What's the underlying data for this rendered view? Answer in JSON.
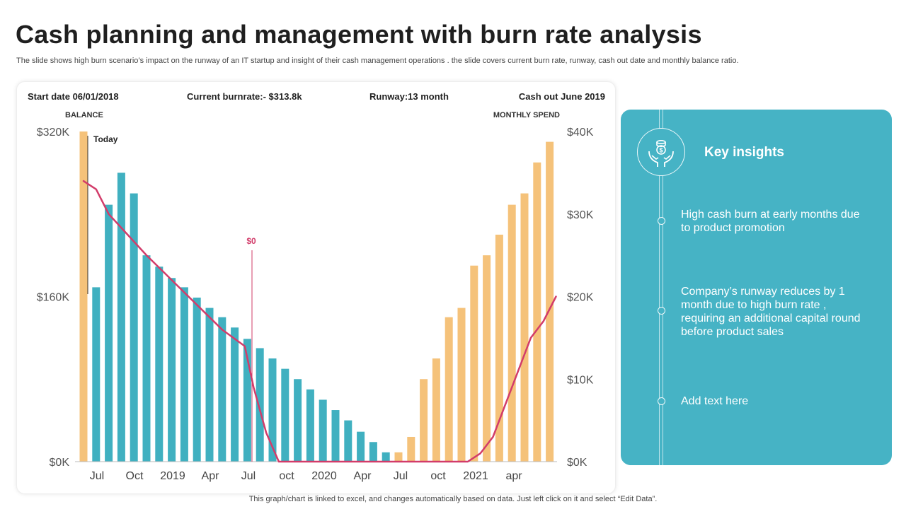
{
  "page": {
    "title": "Cash planning and management with burn rate analysis",
    "subtitle": "The slide shows high burn scenario’s impact on the runway of an IT startup and insight of their cash management operations . the slide covers current burn rate, runway, cash out date and monthly balance ratio.",
    "footer": "This graph/chart is linked to excel, and changes automatically based on data. Just left click on it and select “Edit Data”."
  },
  "stats": {
    "start_date": "Start date 06/01/2018",
    "burnrate": "Current burnrate:- $313.8k",
    "runway": "Runway:13 month",
    "cash_out": "Cash out June 2019"
  },
  "insights": {
    "title": "Key insights",
    "icon": "hands-coins-icon",
    "items": [
      "High cash burn at early months due to product promotion",
      "Company’s runway  reduces by 1 month due to high burn rate , requiring an additional capital round before product sales",
      "Add text here"
    ]
  },
  "colors": {
    "balance_bar": "#40b0c0",
    "spend_bar": "#f5c27a",
    "spend_line": "#d23c6a",
    "panel": "#46b3c5"
  },
  "chart_data": {
    "type": "bar",
    "left_axis_label": "BALANCE",
    "right_axis_label": "MONTHLY  SPEND",
    "left_ticks": [
      "$320K",
      "$160K",
      "$0K"
    ],
    "right_ticks": [
      "$40K",
      "$30K",
      "$20K",
      "$10K",
      "$0K"
    ],
    "ylim_left": [
      0,
      320
    ],
    "ylim_right": [
      0,
      40
    ],
    "x_tick_labels": [
      "Jul",
      "Oct",
      "2019",
      "Apr",
      "Jul",
      "oct",
      "2020",
      "Apr",
      "Jul",
      "oct",
      "2021",
      "apr"
    ],
    "annotations": {
      "today": "Today",
      "zero": "$0"
    },
    "bars": [
      {
        "v": 320,
        "c": "spend"
      },
      {
        "v": 169,
        "c": "balance"
      },
      {
        "v": 249,
        "c": "balance"
      },
      {
        "v": 280,
        "c": "balance"
      },
      {
        "v": 260,
        "c": "balance"
      },
      {
        "v": 200,
        "c": "balance"
      },
      {
        "v": 189,
        "c": "balance"
      },
      {
        "v": 178,
        "c": "balance"
      },
      {
        "v": 169,
        "c": "balance"
      },
      {
        "v": 159,
        "c": "balance"
      },
      {
        "v": 149,
        "c": "balance"
      },
      {
        "v": 140,
        "c": "balance"
      },
      {
        "v": 130,
        "c": "balance"
      },
      {
        "v": 119,
        "c": "balance"
      },
      {
        "v": 110,
        "c": "balance"
      },
      {
        "v": 100,
        "c": "balance"
      },
      {
        "v": 90,
        "c": "balance"
      },
      {
        "v": 80,
        "c": "balance"
      },
      {
        "v": 70,
        "c": "balance"
      },
      {
        "v": 60,
        "c": "balance"
      },
      {
        "v": 50,
        "c": "balance"
      },
      {
        "v": 40,
        "c": "balance"
      },
      {
        "v": 29,
        "c": "balance"
      },
      {
        "v": 19,
        "c": "balance"
      },
      {
        "v": 9,
        "c": "balance"
      },
      {
        "v": 9,
        "c": "spend"
      },
      {
        "v": 24,
        "c": "spend"
      },
      {
        "v": 80,
        "c": "spend"
      },
      {
        "v": 100,
        "c": "spend"
      },
      {
        "v": 140,
        "c": "spend"
      },
      {
        "v": 149,
        "c": "spend"
      },
      {
        "v": 190,
        "c": "spend"
      },
      {
        "v": 200,
        "c": "spend"
      },
      {
        "v": 220,
        "c": "spend"
      },
      {
        "v": 249,
        "c": "spend"
      },
      {
        "v": 260,
        "c": "spend"
      },
      {
        "v": 290,
        "c": "spend"
      },
      {
        "v": 310,
        "c": "spend"
      }
    ],
    "spend_line": [
      {
        "i": 0,
        "v": 34
      },
      {
        "i": 1,
        "v": 33
      },
      {
        "i": 2,
        "v": 30
      },
      {
        "i": 5,
        "v": 25
      },
      {
        "i": 7,
        "v": 22
      },
      {
        "i": 9,
        "v": 19
      },
      {
        "i": 11,
        "v": 16
      },
      {
        "i": 12.8,
        "v": 14
      },
      {
        "i": 13.5,
        "v": 9
      },
      {
        "i": 14.5,
        "v": 3.5
      },
      {
        "i": 15.5,
        "v": 0
      },
      {
        "i": 30.5,
        "v": 0
      },
      {
        "i": 31.5,
        "v": 1
      },
      {
        "i": 32.5,
        "v": 3
      },
      {
        "i": 34,
        "v": 9
      },
      {
        "i": 35.5,
        "v": 15
      },
      {
        "i": 36.5,
        "v": 17
      },
      {
        "i": 37.5,
        "v": 20
      }
    ]
  }
}
